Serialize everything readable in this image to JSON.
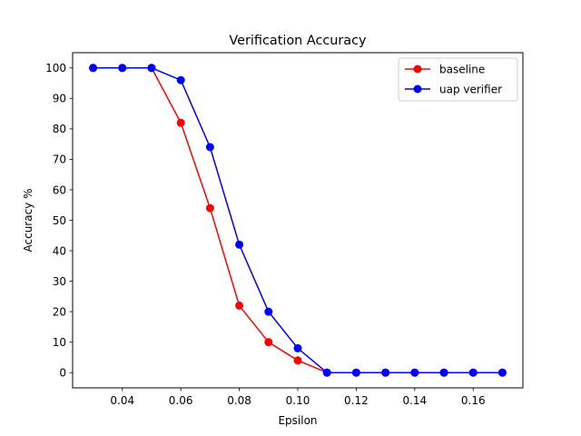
{
  "chart_data": {
    "type": "line",
    "title": "Verification Accuracy",
    "xlabel": "Epsilon",
    "ylabel": "Accuracy %",
    "xlim": [
      0.023,
      0.177
    ],
    "ylim": [
      -5,
      105
    ],
    "xticks": [
      0.04,
      0.06,
      0.08,
      0.1,
      0.12,
      0.14,
      0.16
    ],
    "xtick_labels": [
      "0.04",
      "0.06",
      "0.08",
      "0.10",
      "0.12",
      "0.14",
      "0.16"
    ],
    "yticks": [
      0,
      10,
      20,
      30,
      40,
      50,
      60,
      70,
      80,
      90,
      100
    ],
    "ytick_labels": [
      "0",
      "10",
      "20",
      "30",
      "40",
      "50",
      "60",
      "70",
      "80",
      "90",
      "100"
    ],
    "grid": false,
    "legend_position": "top-right",
    "x": [
      0.03,
      0.04,
      0.05,
      0.06,
      0.07,
      0.08,
      0.09,
      0.1,
      0.11,
      0.12,
      0.13,
      0.14,
      0.15,
      0.16,
      0.17
    ],
    "series": [
      {
        "name": "baseline",
        "color": "#ff0000",
        "marker": "circle",
        "values": [
          100,
          100,
          100,
          82,
          54,
          22,
          10,
          4,
          0,
          0,
          0,
          0,
          0,
          0,
          0
        ]
      },
      {
        "name": "uap verifier",
        "color": "#0000ff",
        "marker": "circle",
        "values": [
          100,
          100,
          100,
          96,
          74,
          42,
          20,
          8,
          0,
          0,
          0,
          0,
          0,
          0,
          0
        ]
      }
    ]
  }
}
